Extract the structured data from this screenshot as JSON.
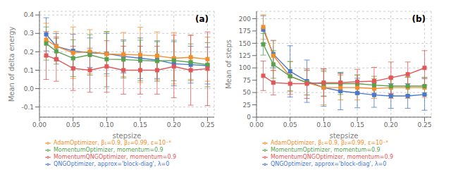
{
  "chart_data": [
    {
      "type": "line",
      "x": [
        0.01,
        0.025,
        0.05,
        0.075,
        0.1,
        0.125,
        0.15,
        0.175,
        0.2,
        0.225,
        0.25
      ],
      "xlabel": "stepsize",
      "ylabel": "Mean of delta energy",
      "xlim": [
        0,
        0.26
      ],
      "xticks": [
        {
          "value": 0,
          "label": "0.00"
        },
        0.05,
        {
          "value": 0.1,
          "label": "0.10"
        },
        0.15,
        {
          "value": 0.2,
          "label": "0.20"
        },
        0.25
      ],
      "ylim": [
        -0.155,
        0.42
      ],
      "yticks": [
        -0.1,
        {
          "value": 0,
          "label": "0.0"
        },
        0.1,
        0.2,
        0.3,
        0.4
      ],
      "grid": true,
      "legend": "bottom",
      "marker": "square",
      "annotations": [
        "(a)"
      ],
      "series": [
        {
          "name": "QNGOptimizer, approx='block-diag', λ=0",
          "color": "#4878cf",
          "values": [
            0.295,
            0.23,
            0.205,
            0.195,
            0.19,
            0.175,
            0.165,
            0.155,
            0.135,
            0.13,
            0.125
          ],
          "yerr": [
            0.09,
            0.07,
            0.09,
            0.08,
            0.11,
            0.09,
            0.11,
            0.1,
            0.12,
            0.1,
            0.1
          ]
        },
        {
          "name": "AdamOptimizer, β₁=0.9, β₂=0.99, ε=10⁻⁸",
          "color": "#f28e2b",
          "values": [
            0.265,
            0.23,
            0.195,
            0.2,
            0.188,
            0.185,
            0.183,
            0.178,
            0.165,
            0.17,
            0.16
          ],
          "yerr": [
            0.09,
            0.08,
            0.14,
            0.12,
            0.12,
            0.12,
            0.15,
            0.13,
            0.14,
            0.12,
            0.12
          ]
        },
        {
          "name": "MomentumOptimizer, momentum=0.9",
          "color": "#59a14f",
          "values": [
            0.245,
            0.203,
            0.165,
            0.183,
            0.16,
            0.158,
            0.153,
            0.15,
            0.153,
            0.143,
            0.13
          ],
          "yerr": [
            0.09,
            0.07,
            0.1,
            0.11,
            0.15,
            0.1,
            0.11,
            0.11,
            0.11,
            0.1,
            0.12
          ]
        },
        {
          "name": "MomentumQNGOptimizer, momentum=0.9",
          "color": "#e15759",
          "values": [
            0.18,
            0.16,
            0.11,
            0.1,
            0.12,
            0.1,
            0.1,
            0.1,
            0.12,
            0.1,
            0.108
          ],
          "yerr": [
            0.13,
            0.12,
            0.12,
            0.12,
            0.14,
            0.13,
            0.13,
            0.13,
            0.17,
            0.19,
            0.2
          ]
        }
      ]
    },
    {
      "type": "line",
      "x": [
        0.01,
        0.025,
        0.05,
        0.075,
        0.1,
        0.125,
        0.15,
        0.175,
        0.2,
        0.225,
        0.25
      ],
      "xlabel": "stepsize",
      "ylabel": "Mean of steps",
      "xlim": [
        0,
        0.26
      ],
      "xticks": [
        {
          "value": 0,
          "label": "0.00"
        },
        0.05,
        {
          "value": 0.1,
          "label": "0.10"
        },
        0.15,
        {
          "value": 0.2,
          "label": "0.20"
        },
        0.25
      ],
      "ylim": [
        0,
        215
      ],
      "yticks": [
        0,
        25,
        50,
        75,
        100,
        125,
        150,
        175,
        200
      ],
      "grid": true,
      "legend": "bottom",
      "marker": "square",
      "annotations": [
        "(b)"
      ],
      "series": [
        {
          "name": "QNGOptimizer, approx='block-diag', λ=0",
          "color": "#4878cf",
          "values": [
            178,
            128,
            93,
            73,
            60,
            53,
            49,
            45,
            43,
            43,
            46
          ],
          "yerr": [
            28,
            28,
            52,
            43,
            38,
            38,
            30,
            25,
            25,
            25,
            32
          ]
        },
        {
          "name": "AdamOptimizer, β₁=0.9, β₂=0.99, ε=10⁻⁸",
          "color": "#f28e2b",
          "values": [
            183,
            125,
            83,
            70,
            60,
            60,
            60,
            58,
            60,
            60,
            60
          ],
          "yerr": [
            25,
            30,
            30,
            25,
            35,
            25,
            25,
            20,
            22,
            22,
            20
          ]
        },
        {
          "name": "MomentumOptimizer, momentum=0.9",
          "color": "#59a14f",
          "values": [
            148,
            107,
            83,
            70,
            68,
            68,
            68,
            65,
            63,
            63,
            63
          ],
          "yerr": [
            22,
            28,
            30,
            25,
            25,
            22,
            18,
            18,
            18,
            18,
            18
          ]
        },
        {
          "name": "MomentumQNGOptimizer, momentum=0.9",
          "color": "#e15759",
          "values": [
            84,
            70,
            68,
            68,
            70,
            70,
            72,
            73,
            80,
            87,
            100
          ],
          "yerr": [
            30,
            25,
            22,
            30,
            28,
            18,
            25,
            28,
            32,
            25,
            35
          ]
        }
      ]
    }
  ]
}
